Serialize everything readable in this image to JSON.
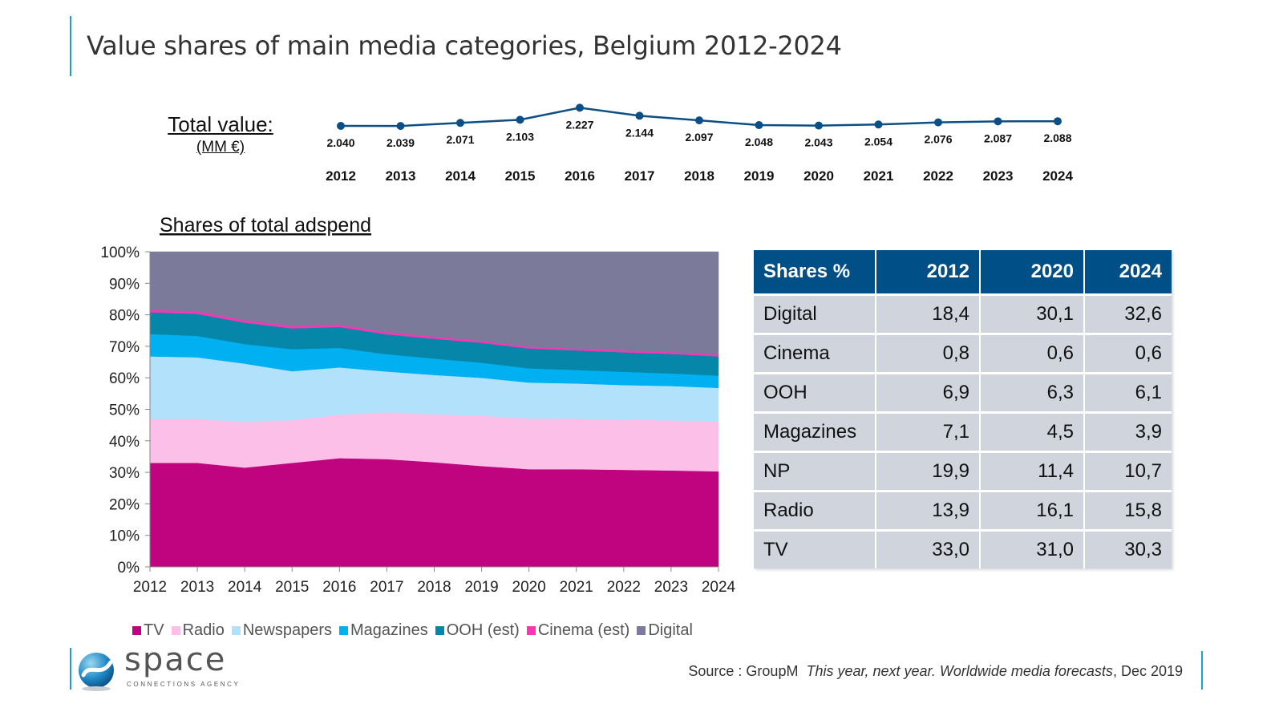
{
  "title": "Value shares of main media categories, Belgium 2012-2024",
  "total_value": {
    "label": "Total value:",
    "unit": "(MM €)",
    "years": [
      "2012",
      "2013",
      "2014",
      "2015",
      "2016",
      "2017",
      "2018",
      "2019",
      "2020",
      "2021",
      "2022",
      "2023",
      "2024"
    ],
    "values": [
      2.04,
      2.039,
      2.071,
      2.103,
      2.227,
      2.144,
      2.097,
      2.048,
      2.043,
      2.054,
      2.076,
      2.087,
      2.088
    ],
    "value_labels": [
      "2.040",
      "2.039",
      "2.071",
      "2.103",
      "2.227",
      "2.144",
      "2.097",
      "2.048",
      "2.043",
      "2.054",
      "2.076",
      "2.087",
      "2.088"
    ],
    "line_color": "#0b4f86"
  },
  "shares_chart": {
    "title": "Shares of total adspend"
  },
  "chart_data": [
    {
      "type": "area",
      "stacked": true,
      "title": "Shares of total adspend",
      "x": [
        "2012",
        "2013",
        "2014",
        "2015",
        "2016",
        "2017",
        "2018",
        "2019",
        "2020",
        "2021",
        "2022",
        "2023",
        "2024"
      ],
      "ylim": [
        0,
        100
      ],
      "y_ticks": [
        "0%",
        "10%",
        "20%",
        "30%",
        "40%",
        "50%",
        "60%",
        "70%",
        "80%",
        "90%",
        "100%"
      ],
      "grid": false,
      "legend_position": "bottom",
      "series": [
        {
          "name": "TV",
          "color": "#c0037e",
          "values": [
            33.0,
            33.0,
            31.5,
            33.0,
            34.5,
            34.2,
            33.2,
            32.0,
            31.0,
            31.0,
            30.8,
            30.6,
            30.3
          ]
        },
        {
          "name": "Radio",
          "color": "#fbbfe8",
          "values": [
            13.9,
            14.0,
            14.5,
            13.6,
            13.8,
            14.8,
            15.2,
            16.0,
            16.1,
            16.0,
            15.9,
            15.9,
            15.8
          ]
        },
        {
          "name": "Newspapers",
          "color": "#b1e1fb",
          "values": [
            19.9,
            19.5,
            18.5,
            15.5,
            15.0,
            13.0,
            12.5,
            12.0,
            11.4,
            11.2,
            11.0,
            10.9,
            10.7
          ]
        },
        {
          "name": "Magazines",
          "color": "#00b0f0",
          "values": [
            7.1,
            6.8,
            6.2,
            7.0,
            6.2,
            5.5,
            5.2,
            4.8,
            4.5,
            4.3,
            4.2,
            4.0,
            3.9
          ]
        },
        {
          "name": "OOH (est)",
          "color": "#0686a8",
          "values": [
            6.9,
            7.0,
            6.8,
            6.6,
            6.6,
            6.3,
            6.3,
            6.3,
            6.3,
            6.2,
            6.2,
            6.2,
            6.1
          ]
        },
        {
          "name": "Cinema (est)",
          "color": "#f438b3",
          "values": [
            0.8,
            0.8,
            0.8,
            0.8,
            0.8,
            0.7,
            0.7,
            0.6,
            0.6,
            0.6,
            0.6,
            0.6,
            0.6
          ]
        },
        {
          "name": "Digital",
          "color": "#7b7a9a",
          "values": [
            18.4,
            18.9,
            21.7,
            23.5,
            23.1,
            25.5,
            26.9,
            28.3,
            30.1,
            30.7,
            31.3,
            31.8,
            32.6
          ]
        }
      ]
    },
    {
      "type": "table",
      "columns": [
        "Shares %",
        "2012",
        "2020",
        "2024"
      ],
      "rows": [
        [
          "Digital",
          "18,4",
          "30,1",
          "32,6"
        ],
        [
          "Cinema",
          "0,8",
          "0,6",
          "0,6"
        ],
        [
          "OOH",
          "6,9",
          "6,3",
          "6,1"
        ],
        [
          "Magazines",
          "7,1",
          "4,5",
          "3,9"
        ],
        [
          "NP",
          "19,9",
          "11,4",
          "10,7"
        ],
        [
          "Radio",
          "13,9",
          "16,1",
          "15,8"
        ],
        [
          "TV",
          "33,0",
          "31,0",
          "30,3"
        ]
      ],
      "header_color": "#004f86",
      "cell_color": "#d0d4dd"
    }
  ],
  "logo": {
    "word": "space",
    "tagline": "CONNECTIONS AGENCY"
  },
  "source": {
    "prefix": "Source : GroupM  ",
    "title": "This year, next year. Worldwide media forecasts",
    "suffix": ", Dec 2019"
  }
}
